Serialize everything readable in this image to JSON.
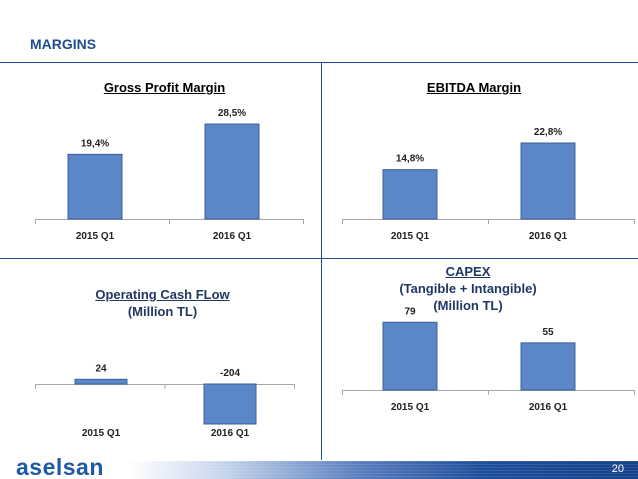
{
  "header": {
    "title": "MARGINS"
  },
  "footer": {
    "logo": "aselsan",
    "page_number": "20"
  },
  "chart_data": [
    {
      "type": "bar",
      "title": "Gross Profit Margin",
      "categories": [
        "2015 Q1",
        "2016 Q1"
      ],
      "values": [
        19.4,
        28.5
      ],
      "value_labels": [
        "19,4%",
        "28,5%"
      ],
      "ylim": [
        0,
        30
      ]
    },
    {
      "type": "bar",
      "title": "EBITDA Margin",
      "categories": [
        "2015 Q1",
        "2016 Q1"
      ],
      "values": [
        14.8,
        22.8
      ],
      "value_labels": [
        "14,8%",
        "22,8%"
      ],
      "ylim": [
        0,
        30
      ]
    },
    {
      "type": "bar",
      "title": "Operating Cash FLow",
      "subtitle": "(Million TL)",
      "categories": [
        "2015 Q1",
        "2016 Q1"
      ],
      "values": [
        24,
        -204
      ],
      "value_labels": [
        "24",
        "-204"
      ],
      "ylim": [
        -204,
        0
      ]
    },
    {
      "type": "bar",
      "title": "CAPEX",
      "subtitle_lines": [
        "(Tangible + Intangible)",
        "(Million TL)"
      ],
      "categories": [
        "2015 Q1",
        "2016 Q1"
      ],
      "values": [
        79,
        55
      ],
      "value_labels": [
        "79",
        "55"
      ],
      "ylim": [
        0,
        140
      ]
    }
  ]
}
